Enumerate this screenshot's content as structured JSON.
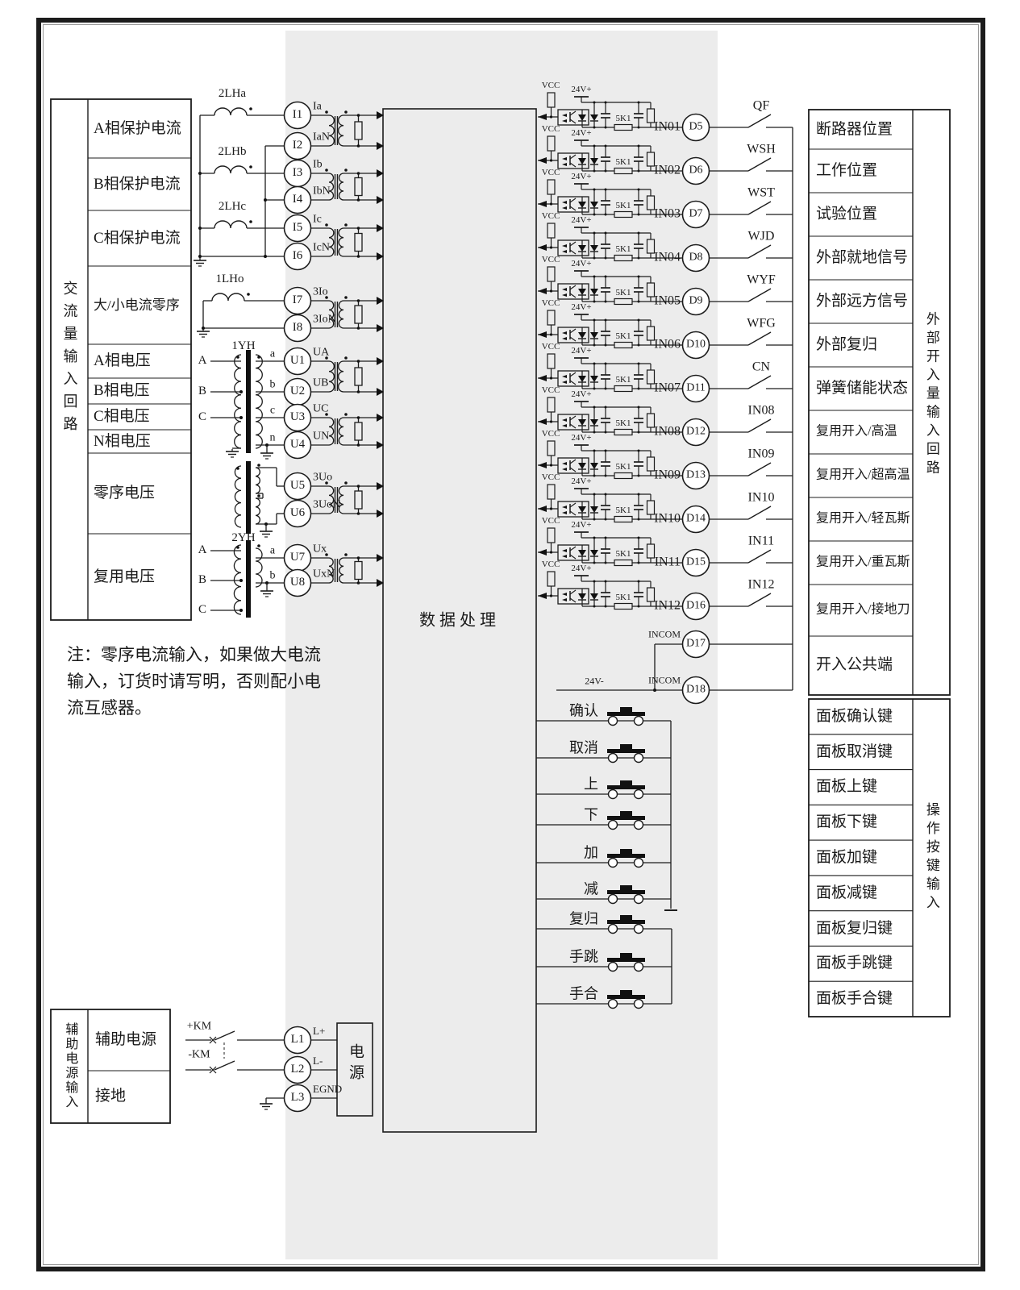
{
  "diagram": {
    "processing_label": "数据处理",
    "power_box_label": "电源",
    "note_lines": [
      "注：零序电流输入，如果做大电流",
      "输入，订货时请写明，否则配小电",
      "流互感器。"
    ],
    "vcc_label": "VCC",
    "v24_label": "24V+",
    "resistor_label": "5K1",
    "incom_label": "INCOM",
    "v24_minus_label": "24V-"
  },
  "left_table": {
    "group_label": "交流量输入回路",
    "rows": [
      "A相保护电流",
      "B相保护电流",
      "C相保护电流",
      "大/小电流零序",
      "A相电压",
      "B相电压",
      "C相电压",
      "N相电压",
      "零序电压",
      "复用电压"
    ]
  },
  "aux_table": {
    "group_label": "辅助电源输入",
    "rows": [
      "辅助电源",
      "接地"
    ]
  },
  "analog_channels": [
    {
      "terminal": "I1",
      "signal": "Ia"
    },
    {
      "terminal": "I2",
      "signal": "IaN"
    },
    {
      "terminal": "I3",
      "signal": "Ib"
    },
    {
      "terminal": "I4",
      "signal": "IbN"
    },
    {
      "terminal": "I5",
      "signal": "Ic"
    },
    {
      "terminal": "I6",
      "signal": "IcN"
    },
    {
      "terminal": "I7",
      "signal": "3Io"
    },
    {
      "terminal": "I8",
      "signal": "3IoN"
    },
    {
      "terminal": "U1",
      "signal": "UA"
    },
    {
      "terminal": "U2",
      "signal": "UB"
    },
    {
      "terminal": "U3",
      "signal": "UC"
    },
    {
      "terminal": "U4",
      "signal": "UN"
    },
    {
      "terminal": "U5",
      "signal": "3Uo"
    },
    {
      "terminal": "U6",
      "signal": "3UoN"
    },
    {
      "terminal": "U7",
      "signal": "Ux"
    },
    {
      "terminal": "U8",
      "signal": "UxN"
    }
  ],
  "inductor_labels": [
    "2LHa",
    "2LHb",
    "2LHc",
    "1LHo"
  ],
  "vt_labels": [
    "1YH",
    "2YH"
  ],
  "vt1_primary": [
    "A",
    "B",
    "C"
  ],
  "vt1_secondary": [
    "a",
    "b",
    "c",
    "n"
  ],
  "vt2_primary": [
    "A",
    "B",
    "C"
  ],
  "vt2_secondary": [
    "a",
    "b"
  ],
  "km_labels": [
    "+KM",
    "-KM"
  ],
  "power_terminals": [
    {
      "terminal": "L1",
      "signal": "L+"
    },
    {
      "terminal": "L2",
      "signal": "L-"
    },
    {
      "terminal": "L3",
      "signal": "EGND"
    }
  ],
  "digital_inputs": {
    "group_label": "外部开入量输入回路",
    "common_label": "开入公共端",
    "rows": [
      {
        "in": "IN01",
        "d": "D5",
        "switch": "QF",
        "desc": "断路器位置"
      },
      {
        "in": "IN02",
        "d": "D6",
        "switch": "WSH",
        "desc": "工作位置"
      },
      {
        "in": "IN03",
        "d": "D7",
        "switch": "WST",
        "desc": "试验位置"
      },
      {
        "in": "IN04",
        "d": "D8",
        "switch": "WJD",
        "desc": "外部就地信号"
      },
      {
        "in": "IN05",
        "d": "D9",
        "switch": "WYF",
        "desc": "外部远方信号"
      },
      {
        "in": "IN06",
        "d": "D10",
        "switch": "WFG",
        "desc": "外部复归"
      },
      {
        "in": "IN07",
        "d": "D11",
        "switch": "CN",
        "desc": "弹簧储能状态"
      },
      {
        "in": "IN08",
        "d": "D12",
        "switch": "IN08",
        "desc": "复用开入/高温"
      },
      {
        "in": "IN09",
        "d": "D13",
        "switch": "IN09",
        "desc": "复用开入/超高温"
      },
      {
        "in": "IN10",
        "d": "D14",
        "switch": "IN10",
        "desc": "复用开入/轻瓦斯"
      },
      {
        "in": "IN11",
        "d": "D15",
        "switch": "IN11",
        "desc": "复用开入/重瓦斯"
      },
      {
        "in": "IN12",
        "d": "D16",
        "switch": "IN12",
        "desc": "复用开入/接地刀"
      }
    ],
    "incom_terminals": [
      {
        "d": "D17"
      },
      {
        "d": "D18"
      }
    ]
  },
  "panel_keys": {
    "group_label": "操作按键输入",
    "rows": [
      {
        "button": "确认",
        "desc": "面板确认键"
      },
      {
        "button": "取消",
        "desc": "面板取消键"
      },
      {
        "button": "上",
        "desc": "面板上键"
      },
      {
        "button": "下",
        "desc": "面板下键"
      },
      {
        "button": "加",
        "desc": "面板加键"
      },
      {
        "button": "减",
        "desc": "面板减键"
      },
      {
        "button": "复归",
        "desc": "面板复归键"
      },
      {
        "button": "手跳",
        "desc": "面板手跳键"
      },
      {
        "button": "手合",
        "desc": "面板手合键"
      }
    ]
  }
}
